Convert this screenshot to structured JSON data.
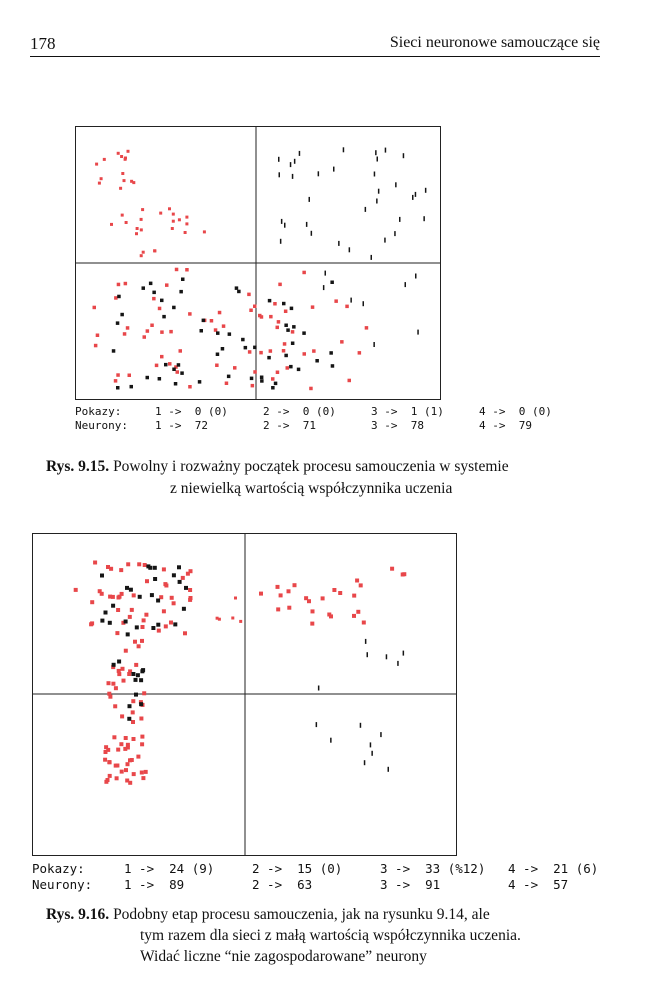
{
  "header": {
    "page_number": "178",
    "running_title": "Sieci neuronowe samouczące się"
  },
  "figures": [
    {
      "stats": {
        "row1": [
          "Pokazy:",
          "1 ->  0 (0)",
          "2 ->  0 (0)",
          "3 ->  1 (1)",
          "4 ->  0 (0)"
        ],
        "row2": [
          "Neurony:",
          "1 ->  72",
          "2 ->  71",
          "3 ->  78",
          "4 ->  79"
        ]
      },
      "caption": {
        "label": "Rys. 9.15.",
        "line1": "Powolny i rozważny początek procesu samouczenia w systemie",
        "line2": "z niewielką wartością współczynnika uczenia"
      }
    },
    {
      "stats": {
        "row1": [
          "Pokazy:",
          "1 ->  24 (9)",
          "2 ->  15 (0)",
          "3 ->  33 (%12)",
          "4 ->  21 (6)"
        ],
        "row2": [
          "Neurony:",
          "1 ->  89",
          "2 ->  63",
          "3 ->  91",
          "4 ->  57"
        ]
      },
      "caption": {
        "label": "Rys. 9.16.",
        "line1": "Podobny etap procesu samouczenia, jak na rysunku 9.14, ale",
        "line2": "tym razem dla sieci z małą wartością współczynnika uczenia.",
        "line3": "Widać liczne “nie zagospodarowane” neurony"
      }
    }
  ],
  "colors": {
    "red_marker": "#e8474a",
    "black_marker": "#151515"
  }
}
